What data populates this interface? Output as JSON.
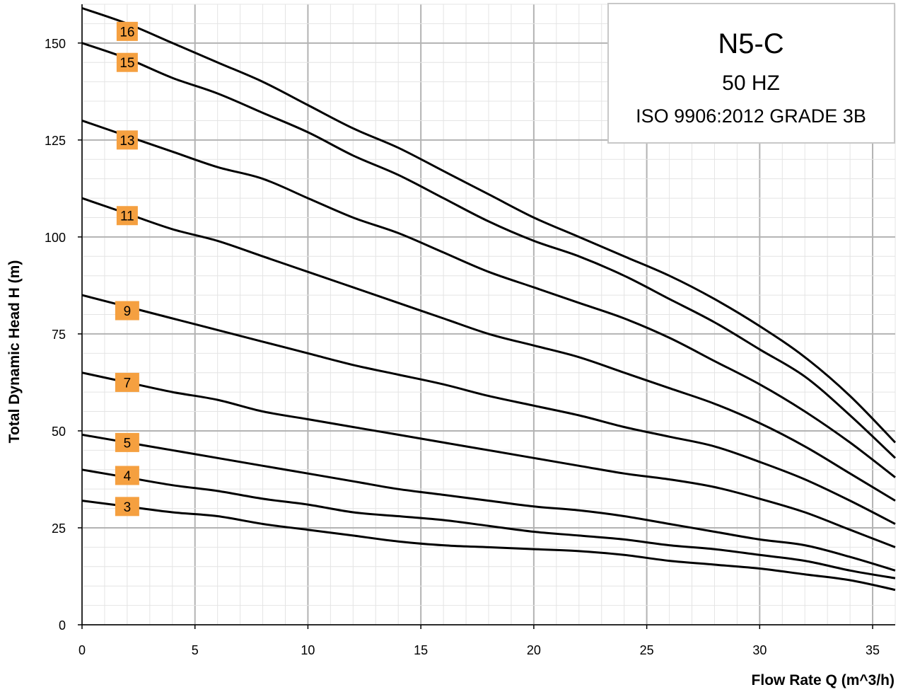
{
  "chart_data": {
    "type": "line",
    "title": "N5-C",
    "subtitle": "50 HZ",
    "standard": "ISO 9906:2012  GRADE 3B",
    "xlabel": "Flow Rate Q (m^3/h)",
    "ylabel": "Total Dynamic Head  H (m)",
    "xlim": [
      0,
      36
    ],
    "ylim": [
      0,
      160
    ],
    "xticks": [
      0,
      5,
      10,
      15,
      20,
      25,
      30,
      35
    ],
    "yticks": [
      0,
      25,
      50,
      75,
      100,
      125,
      150
    ],
    "grid": true,
    "label_color": "#f5a040",
    "line_color": "#000000",
    "series": [
      {
        "name": "16",
        "label_at": [
          2,
          153
        ],
        "points": [
          [
            0,
            159
          ],
          [
            2,
            155
          ],
          [
            4,
            150
          ],
          [
            6,
            145
          ],
          [
            8,
            140
          ],
          [
            10,
            134
          ],
          [
            12,
            128
          ],
          [
            14,
            123
          ],
          [
            16,
            117
          ],
          [
            18,
            111
          ],
          [
            20,
            105
          ],
          [
            22,
            100
          ],
          [
            24,
            95
          ],
          [
            26,
            90
          ],
          [
            28,
            84
          ],
          [
            30,
            77
          ],
          [
            32,
            69
          ],
          [
            34,
            59
          ],
          [
            36,
            47
          ]
        ]
      },
      {
        "name": "15",
        "label_at": [
          2,
          145
        ],
        "points": [
          [
            0,
            150
          ],
          [
            2,
            146
          ],
          [
            4,
            141
          ],
          [
            6,
            137
          ],
          [
            8,
            132
          ],
          [
            10,
            127
          ],
          [
            12,
            121
          ],
          [
            14,
            116
          ],
          [
            16,
            110
          ],
          [
            18,
            104
          ],
          [
            20,
            99
          ],
          [
            22,
            95
          ],
          [
            24,
            90
          ],
          [
            26,
            84
          ],
          [
            28,
            78
          ],
          [
            30,
            71
          ],
          [
            32,
            64
          ],
          [
            34,
            54
          ],
          [
            36,
            43
          ]
        ]
      },
      {
        "name": "13",
        "label_at": [
          2,
          125
        ],
        "points": [
          [
            0,
            130
          ],
          [
            2,
            126
          ],
          [
            4,
            122
          ],
          [
            6,
            118
          ],
          [
            8,
            115
          ],
          [
            10,
            110
          ],
          [
            12,
            105
          ],
          [
            14,
            101
          ],
          [
            16,
            96
          ],
          [
            18,
            91
          ],
          [
            20,
            87
          ],
          [
            22,
            83
          ],
          [
            24,
            79
          ],
          [
            26,
            74
          ],
          [
            28,
            68
          ],
          [
            30,
            62
          ],
          [
            32,
            55
          ],
          [
            34,
            47
          ],
          [
            36,
            38
          ]
        ]
      },
      {
        "name": "11",
        "label_at": [
          2,
          105.5
        ],
        "points": [
          [
            0,
            110
          ],
          [
            2,
            106
          ],
          [
            4,
            102
          ],
          [
            6,
            99
          ],
          [
            8,
            95
          ],
          [
            10,
            91
          ],
          [
            12,
            87
          ],
          [
            14,
            83
          ],
          [
            16,
            79
          ],
          [
            18,
            75
          ],
          [
            20,
            72
          ],
          [
            22,
            69
          ],
          [
            24,
            65
          ],
          [
            26,
            61
          ],
          [
            28,
            57
          ],
          [
            30,
            52
          ],
          [
            32,
            46
          ],
          [
            34,
            39
          ],
          [
            36,
            32
          ]
        ]
      },
      {
        "name": "9",
        "label_at": [
          2,
          81
        ],
        "points": [
          [
            0,
            85
          ],
          [
            2,
            82
          ],
          [
            4,
            79
          ],
          [
            6,
            76
          ],
          [
            8,
            73
          ],
          [
            10,
            70
          ],
          [
            12,
            67
          ],
          [
            14,
            64.5
          ],
          [
            16,
            62
          ],
          [
            18,
            59
          ],
          [
            20,
            56.5
          ],
          [
            22,
            54
          ],
          [
            24,
            51
          ],
          [
            26,
            48.5
          ],
          [
            28,
            46
          ],
          [
            30,
            42
          ],
          [
            32,
            37.5
          ],
          [
            34,
            32
          ],
          [
            36,
            26
          ]
        ]
      },
      {
        "name": "7",
        "label_at": [
          2,
          62.5
        ],
        "points": [
          [
            0,
            65
          ],
          [
            2,
            62.5
          ],
          [
            4,
            60
          ],
          [
            6,
            58
          ],
          [
            8,
            55
          ],
          [
            10,
            53
          ],
          [
            12,
            51
          ],
          [
            14,
            49
          ],
          [
            16,
            47
          ],
          [
            18,
            45
          ],
          [
            20,
            43
          ],
          [
            22,
            41
          ],
          [
            24,
            39
          ],
          [
            26,
            37.5
          ],
          [
            28,
            35.5
          ],
          [
            30,
            32.5
          ],
          [
            32,
            29
          ],
          [
            34,
            24.5
          ],
          [
            36,
            20
          ]
        ]
      },
      {
        "name": "5",
        "label_at": [
          2,
          47
        ],
        "points": [
          [
            0,
            49
          ],
          [
            2,
            47
          ],
          [
            4,
            45
          ],
          [
            6,
            43
          ],
          [
            8,
            41
          ],
          [
            10,
            39
          ],
          [
            12,
            37
          ],
          [
            14,
            35
          ],
          [
            16,
            33.5
          ],
          [
            18,
            32
          ],
          [
            20,
            30.5
          ],
          [
            22,
            29.5
          ],
          [
            24,
            28
          ],
          [
            26,
            26
          ],
          [
            28,
            24
          ],
          [
            30,
            22
          ],
          [
            32,
            20.5
          ],
          [
            34,
            17.5
          ],
          [
            36,
            14
          ]
        ]
      },
      {
        "name": "4",
        "label_at": [
          2,
          38.5
        ],
        "points": [
          [
            0,
            40
          ],
          [
            2,
            38
          ],
          [
            4,
            36
          ],
          [
            6,
            34.5
          ],
          [
            8,
            32.5
          ],
          [
            10,
            31
          ],
          [
            12,
            29
          ],
          [
            14,
            28
          ],
          [
            16,
            27
          ],
          [
            18,
            25.5
          ],
          [
            20,
            24
          ],
          [
            22,
            23
          ],
          [
            24,
            22
          ],
          [
            26,
            20.5
          ],
          [
            28,
            19.5
          ],
          [
            30,
            18
          ],
          [
            32,
            16.5
          ],
          [
            34,
            14
          ],
          [
            36,
            12
          ]
        ]
      },
      {
        "name": "3",
        "label_at": [
          2,
          30.5
        ],
        "points": [
          [
            0,
            32
          ],
          [
            2,
            30.5
          ],
          [
            4,
            29
          ],
          [
            6,
            28
          ],
          [
            8,
            26
          ],
          [
            10,
            24.5
          ],
          [
            12,
            23
          ],
          [
            14,
            21.5
          ],
          [
            16,
            20.5
          ],
          [
            18,
            20
          ],
          [
            20,
            19.5
          ],
          [
            22,
            19
          ],
          [
            24,
            18
          ],
          [
            26,
            16.5
          ],
          [
            28,
            15.5
          ],
          [
            30,
            14.5
          ],
          [
            32,
            13
          ],
          [
            34,
            11.5
          ],
          [
            36,
            9
          ]
        ]
      }
    ]
  }
}
